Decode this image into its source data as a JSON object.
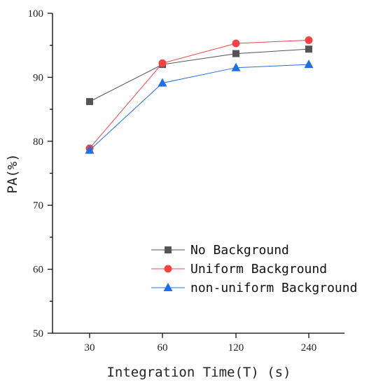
{
  "chart_data": {
    "type": "line",
    "xlabel": "Integration Time(T) (s)",
    "ylabel": "PA(%)",
    "categories": [
      "30",
      "60",
      "120",
      "240"
    ],
    "ylim": [
      50,
      100
    ],
    "yticks": [
      "50",
      "60",
      "70",
      "80",
      "90",
      "100"
    ],
    "grid": false,
    "legend_position": "bottom-right",
    "series": [
      {
        "name": "No Background",
        "values": [
          86.2,
          92.0,
          93.7,
          94.4
        ],
        "color": "#555555",
        "marker": "square"
      },
      {
        "name": "Uniform Background",
        "values": [
          78.9,
          92.2,
          95.3,
          95.8
        ],
        "color": "#f04545",
        "marker": "circle"
      },
      {
        "name": "non-uniform Background",
        "values": [
          78.6,
          89.1,
          91.5,
          92.0
        ],
        "color": "#1f6fe6",
        "marker": "triangle"
      }
    ]
  }
}
